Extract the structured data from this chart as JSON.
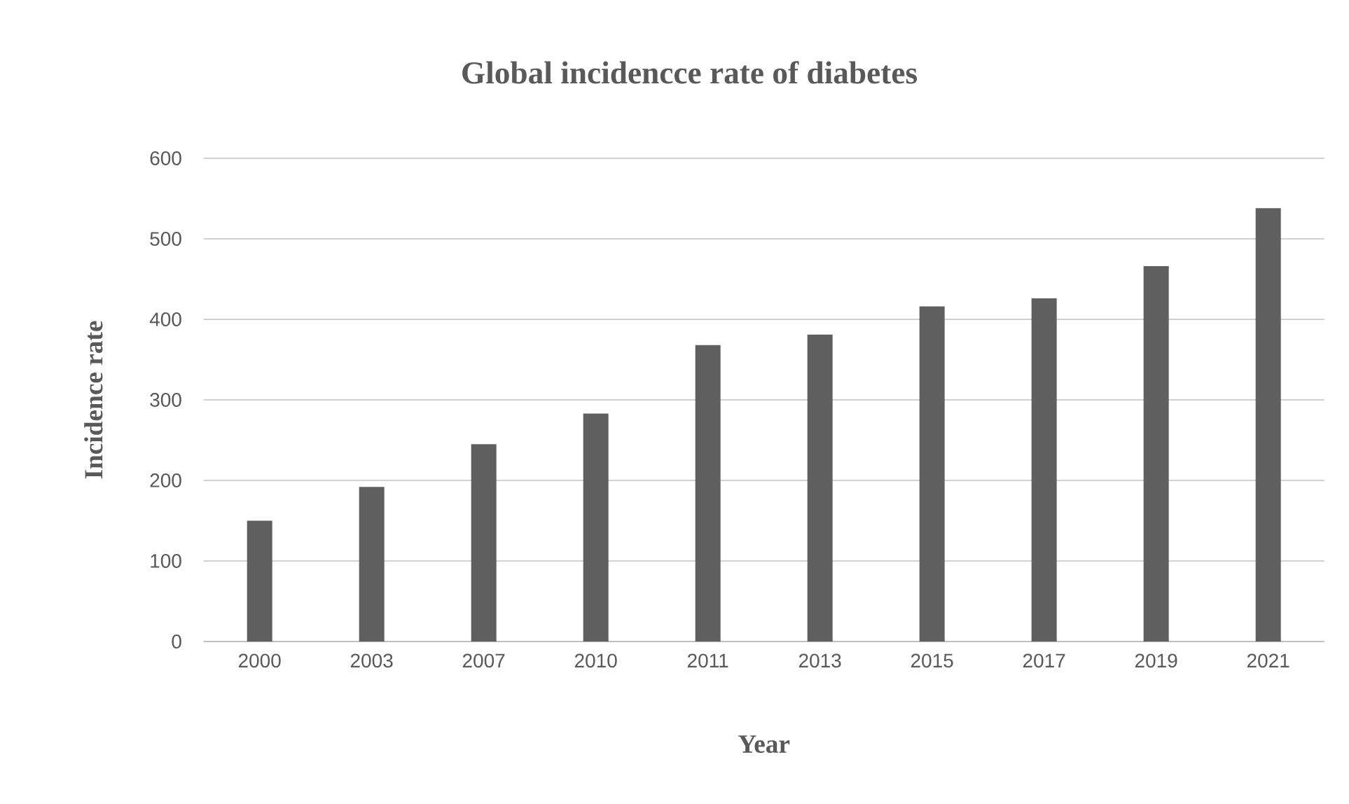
{
  "chart_data": {
    "type": "bar",
    "title": "Global incidencce rate of diabetes",
    "xlabel": "Year",
    "ylabel": "Incidence rate",
    "categories": [
      "2000",
      "2003",
      "2007",
      "2010",
      "2011",
      "2013",
      "2015",
      "2017",
      "2019",
      "2021"
    ],
    "values": [
      150,
      192,
      245,
      283,
      368,
      381,
      416,
      426,
      466,
      538
    ],
    "color": "#5f5f5f",
    "ylim": [
      0,
      600
    ],
    "yticks": [
      0,
      100,
      200,
      300,
      400,
      500,
      600
    ],
    "grid": "y"
  }
}
